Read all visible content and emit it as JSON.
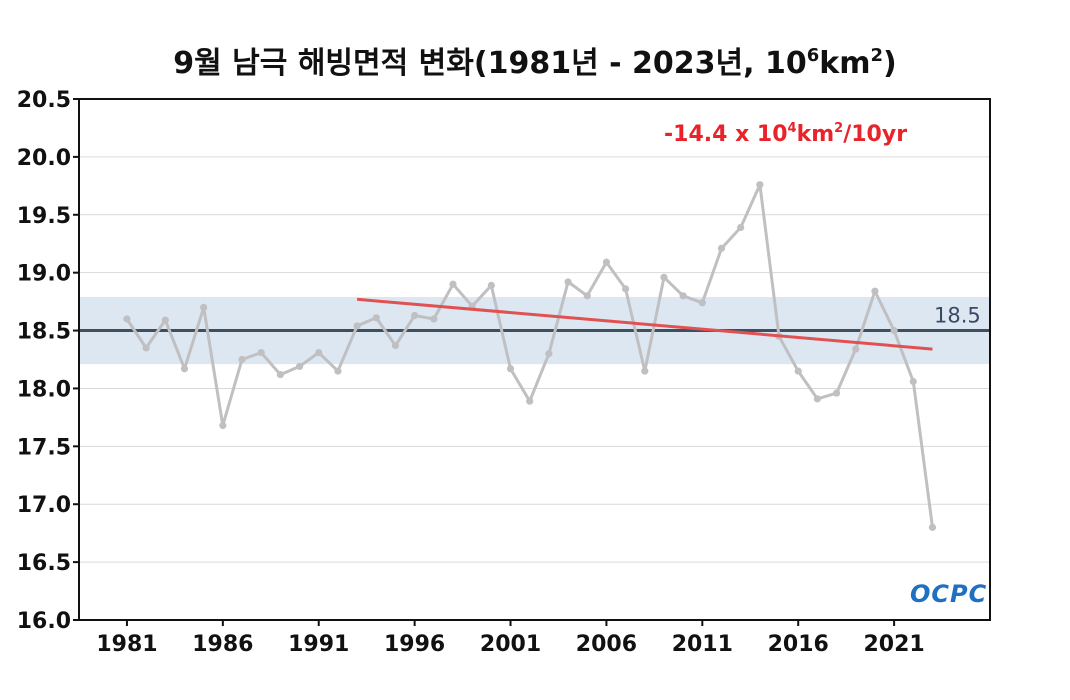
{
  "title": {
    "main": "9월 남극 해빙면적 변화(1981년 - 2023년, 10",
    "sup1": "6",
    "mid": "km",
    "sup2": "2",
    "end": ")"
  },
  "trend": {
    "prefix": "-14.4 x 10",
    "sup1": "4",
    "mid": "km",
    "sup2": "2",
    "suffix": "/10yr",
    "color": "#e8232a",
    "start_year": 1993,
    "start_value": 18.77,
    "end_year": 2023,
    "end_value": 18.34
  },
  "mean": {
    "label": "18.5",
    "value": 18.5,
    "band": [
      18.21,
      18.79
    ],
    "line_color": "#3f4f5e",
    "band_color": "#dde7f1"
  },
  "logo": "OCPC",
  "chart_data": {
    "type": "line",
    "x": [
      1981,
      1982,
      1983,
      1984,
      1985,
      1986,
      1987,
      1988,
      1989,
      1990,
      1991,
      1992,
      1993,
      1994,
      1995,
      1996,
      1997,
      1998,
      1999,
      2000,
      2001,
      2002,
      2003,
      2004,
      2005,
      2006,
      2007,
      2008,
      2009,
      2010,
      2011,
      2012,
      2013,
      2014,
      2015,
      2016,
      2017,
      2018,
      2019,
      2020,
      2021,
      2022,
      2023
    ],
    "series": [
      {
        "color": "#c0c0c2",
        "values": [
          18.6,
          18.35,
          18.59,
          18.17,
          18.7,
          17.68,
          18.25,
          18.31,
          18.12,
          18.19,
          18.31,
          18.15,
          18.54,
          18.61,
          18.37,
          18.63,
          18.6,
          18.9,
          18.71,
          18.89,
          18.17,
          17.89,
          18.3,
          18.92,
          18.8,
          19.09,
          18.86,
          18.15,
          18.96,
          18.8,
          18.74,
          19.21,
          19.39,
          19.76,
          18.45,
          18.15,
          17.91,
          17.96,
          18.34,
          18.84,
          18.5,
          18.06,
          16.8
        ]
      }
    ],
    "xticks": [
      1981,
      1986,
      1991,
      1996,
      2001,
      2006,
      2011,
      2016,
      2021
    ],
    "yticks": [
      "16.0",
      "16.5",
      "17.0",
      "17.5",
      "18.0",
      "18.5",
      "19.0",
      "19.5",
      "20.0",
      "20.5"
    ],
    "ylim": [
      16.0,
      20.5
    ],
    "xlim": [
      1978.5,
      2026.0
    ],
    "grid": true
  }
}
